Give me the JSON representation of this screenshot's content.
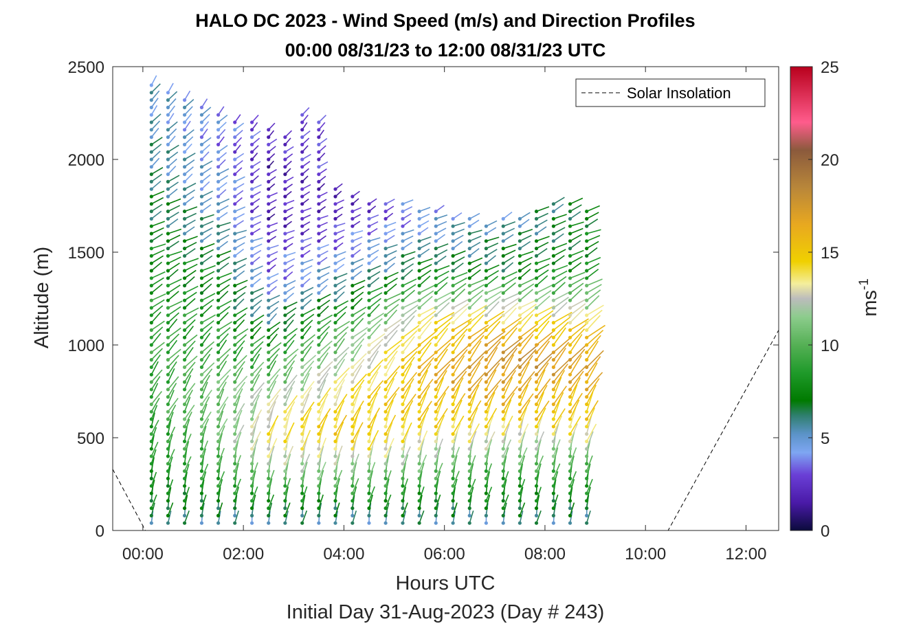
{
  "chart_data": {
    "type": "wind-barb-profile",
    "title": "HALO DC 2023 - Wind Speed (m/s) and Direction Profiles",
    "subtitle": "00:00 08/31/23 to 12:00 08/31/23  UTC",
    "xlabel": "Hours UTC",
    "ylabel": "Altitude (m)",
    "footer": "Initial Day 31-Aug-2023 (Day # 243)",
    "xlim_hours": [
      -0.6,
      12.65
    ],
    "ylim": [
      0,
      2500
    ],
    "x_ticks": [
      0,
      2,
      4,
      6,
      8,
      10,
      12
    ],
    "x_tick_labels": [
      "00:00",
      "02:00",
      "04:00",
      "06:00",
      "08:00",
      "10:00",
      "12:00"
    ],
    "y_ticks": [
      0,
      500,
      1000,
      1500,
      2000,
      2500
    ],
    "y_tick_labels": [
      "0",
      "500",
      "1000",
      "1500",
      "2000",
      "2500"
    ],
    "legend": {
      "label": "Solar Insolation",
      "placement": "top-right",
      "line_style": "dashed",
      "color": "#000000"
    },
    "colorbar": {
      "label_base": "ms",
      "label_exp": "-1",
      "range": [
        0,
        25
      ],
      "ticks": [
        0,
        5,
        10,
        15,
        20,
        25
      ],
      "tick_labels": [
        "0",
        "5",
        "10",
        "15",
        "20",
        "25"
      ],
      "stops": [
        {
          "v": 0,
          "color": "#0b0b3c"
        },
        {
          "v": 1.5,
          "color": "#4a1aa8"
        },
        {
          "v": 3,
          "color": "#6a3fd6"
        },
        {
          "v": 4.2,
          "color": "#7ea6f2"
        },
        {
          "v": 5.2,
          "color": "#5b93c8"
        },
        {
          "v": 6.2,
          "color": "#2f7f6e"
        },
        {
          "v": 7,
          "color": "#007a00"
        },
        {
          "v": 8.5,
          "color": "#1f9a2a"
        },
        {
          "v": 10,
          "color": "#55b055"
        },
        {
          "v": 11.5,
          "color": "#8ccc8c"
        },
        {
          "v": 12.5,
          "color": "#bcbcbc"
        },
        {
          "v": 13.3,
          "color": "#f4ee9c"
        },
        {
          "v": 14.5,
          "color": "#f0d000"
        },
        {
          "v": 16.5,
          "color": "#e8a820"
        },
        {
          "v": 18.5,
          "color": "#b8863a"
        },
        {
          "v": 20.5,
          "color": "#8b5a3c"
        },
        {
          "v": 22,
          "color": "#ff5c8c"
        },
        {
          "v": 25,
          "color": "#b8001c"
        }
      ]
    },
    "solar_insolation_relative_m": [
      {
        "h": -0.6,
        "y": 330
      },
      {
        "h": 0.05,
        "y": 0
      },
      {
        "h": 10.45,
        "y": 0
      },
      {
        "h": 12.65,
        "y": 1080
      }
    ],
    "profile_hours": [
      0.17,
      0.5,
      0.83,
      1.17,
      1.5,
      1.83,
      2.17,
      2.5,
      2.83,
      3.17,
      3.5,
      3.83,
      4.17,
      4.5,
      4.83,
      5.17,
      5.5,
      5.83,
      6.17,
      6.5,
      6.83,
      7.17,
      7.5,
      7.83,
      8.17,
      8.5,
      8.83
    ],
    "profile_top_m": [
      2400,
      2380,
      2320,
      2300,
      2260,
      2200,
      2200,
      2180,
      2150,
      2250,
      2200,
      1850,
      1800,
      1780,
      1760,
      1760,
      1740,
      1720,
      1700,
      1680,
      1660,
      1680,
      1700,
      1740,
      1760,
      1760,
      1740
    ],
    "sample_spacing_m": 40,
    "speed_profile_ms": [
      {
        "start_h": 0,
        "points": [
          [
            0,
            5
          ],
          [
            120,
            7
          ],
          [
            400,
            8
          ],
          [
            700,
            9
          ],
          [
            1000,
            9
          ],
          [
            1400,
            8
          ],
          [
            1700,
            7
          ],
          [
            2000,
            6
          ],
          [
            2400,
            5
          ]
        ]
      },
      {
        "start_h": 1.5,
        "points": [
          [
            0,
            5
          ],
          [
            120,
            7
          ],
          [
            400,
            10
          ],
          [
            700,
            11
          ],
          [
            1000,
            9
          ],
          [
            1400,
            7
          ],
          [
            1700,
            5
          ],
          [
            2000,
            4
          ],
          [
            2400,
            4
          ]
        ]
      },
      {
        "start_h": 2.5,
        "points": [
          [
            0,
            5
          ],
          [
            120,
            7
          ],
          [
            300,
            11
          ],
          [
            500,
            14
          ],
          [
            700,
            12
          ],
          [
            1000,
            8
          ],
          [
            1300,
            4
          ],
          [
            1700,
            2
          ],
          [
            2000,
            2
          ],
          [
            2400,
            3
          ]
        ]
      },
      {
        "start_h": 4.0,
        "points": [
          [
            0,
            5
          ],
          [
            120,
            7
          ],
          [
            300,
            11
          ],
          [
            500,
            15
          ],
          [
            700,
            14
          ],
          [
            1000,
            11
          ],
          [
            1300,
            6
          ],
          [
            1700,
            2
          ],
          [
            2000,
            3
          ],
          [
            2400,
            4
          ]
        ]
      },
      {
        "start_h": 5.5,
        "points": [
          [
            0,
            5
          ],
          [
            120,
            7
          ],
          [
            300,
            10
          ],
          [
            500,
            14
          ],
          [
            800,
            16
          ],
          [
            1100,
            14
          ],
          [
            1400,
            7
          ],
          [
            1700,
            4
          ],
          [
            2000,
            4
          ],
          [
            2400,
            5
          ]
        ]
      },
      {
        "start_h": 7.0,
        "points": [
          [
            0,
            5
          ],
          [
            120,
            7
          ],
          [
            300,
            9
          ],
          [
            600,
            15
          ],
          [
            900,
            18
          ],
          [
            1100,
            15
          ],
          [
            1400,
            7
          ],
          [
            1700,
            5
          ],
          [
            2000,
            4
          ],
          [
            2400,
            5
          ]
        ]
      },
      {
        "start_h": 8.8,
        "points": [
          [
            0,
            5
          ],
          [
            120,
            7
          ],
          [
            300,
            9
          ],
          [
            600,
            15
          ],
          [
            900,
            17
          ],
          [
            1100,
            14
          ],
          [
            1400,
            8
          ],
          [
            1700,
            7
          ]
        ]
      }
    ],
    "direction_profile_deg": [
      {
        "alt": 0,
        "toward_deg": 190
      },
      {
        "alt": 400,
        "toward_deg": 195
      },
      {
        "alt": 800,
        "toward_deg": 215
      },
      {
        "alt": 1200,
        "toward_deg": 235
      },
      {
        "alt": 1600,
        "toward_deg": 245
      },
      {
        "alt": 2000,
        "toward_deg": 230
      },
      {
        "alt": 2500,
        "toward_deg": 210
      }
    ]
  }
}
